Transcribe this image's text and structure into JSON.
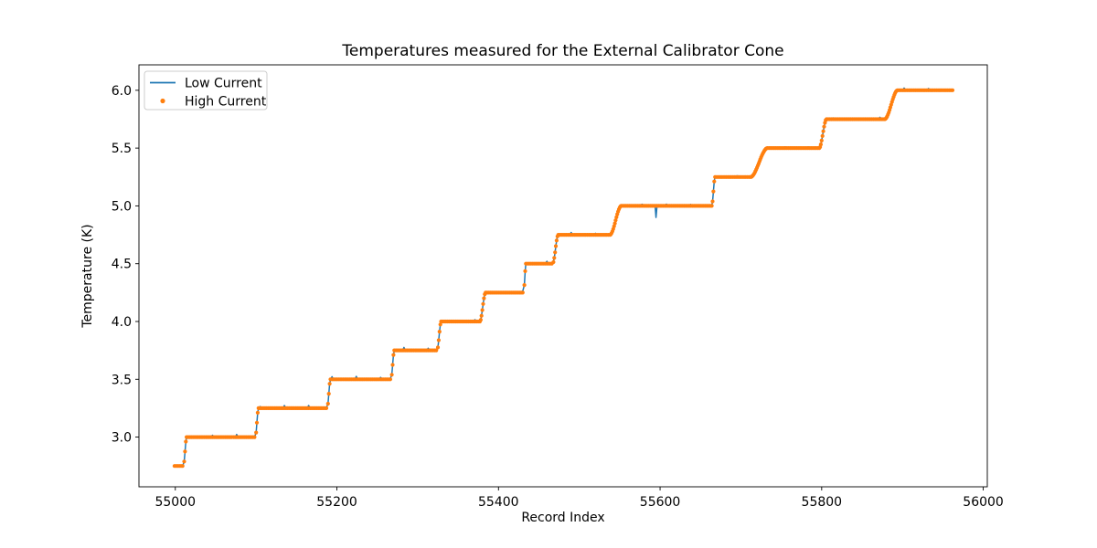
{
  "figure": {
    "background": "#ffffff"
  },
  "chart_data": {
    "type": "line+scatter",
    "title": "Temperatures measured for the External Calibrator Cone",
    "xlabel": "Record Index",
    "ylabel": "Temperature (K)",
    "xlim": [
      54955,
      56005
    ],
    "ylim": [
      2.57,
      6.22
    ],
    "xticks": [
      55000,
      55200,
      55400,
      55600,
      55800,
      56000
    ],
    "yticks": [
      3.0,
      3.5,
      4.0,
      4.5,
      5.0,
      5.5,
      6.0
    ],
    "grid": false,
    "legend_position": "upper-left",
    "series": [
      {
        "name": "Low Current",
        "type": "line",
        "color": "#1f77b4"
      },
      {
        "name": "High Current",
        "type": "scatter",
        "color": "#ff7f0e"
      }
    ],
    "temperature_steps": [
      {
        "level": 2.75,
        "start": 54999,
        "end": 55010
      },
      {
        "level": 3.0,
        "start": 55014,
        "end": 55099
      },
      {
        "level": 3.25,
        "start": 55103,
        "end": 55188
      },
      {
        "level": 3.5,
        "start": 55192,
        "end": 55267
      },
      {
        "level": 3.75,
        "start": 55271,
        "end": 55324
      },
      {
        "level": 4.0,
        "start": 55329,
        "end": 55377
      },
      {
        "level": 4.25,
        "start": 55384,
        "end": 55431
      },
      {
        "level": 4.5,
        "start": 55434,
        "end": 55467
      },
      {
        "level": 4.75,
        "start": 55474,
        "end": 55538
      },
      {
        "level": 5.0,
        "start": 55552,
        "end": 55664
      },
      {
        "level": 5.25,
        "start": 55668,
        "end": 55712
      },
      {
        "level": 5.5,
        "start": 55733,
        "end": 55797
      },
      {
        "level": 5.75,
        "start": 55806,
        "end": 55878
      },
      {
        "level": 6.0,
        "start": 55894,
        "end": 55962
      }
    ],
    "anomalies": [
      {
        "series": "Low Current",
        "x": 55595,
        "y": 4.9
      }
    ]
  }
}
